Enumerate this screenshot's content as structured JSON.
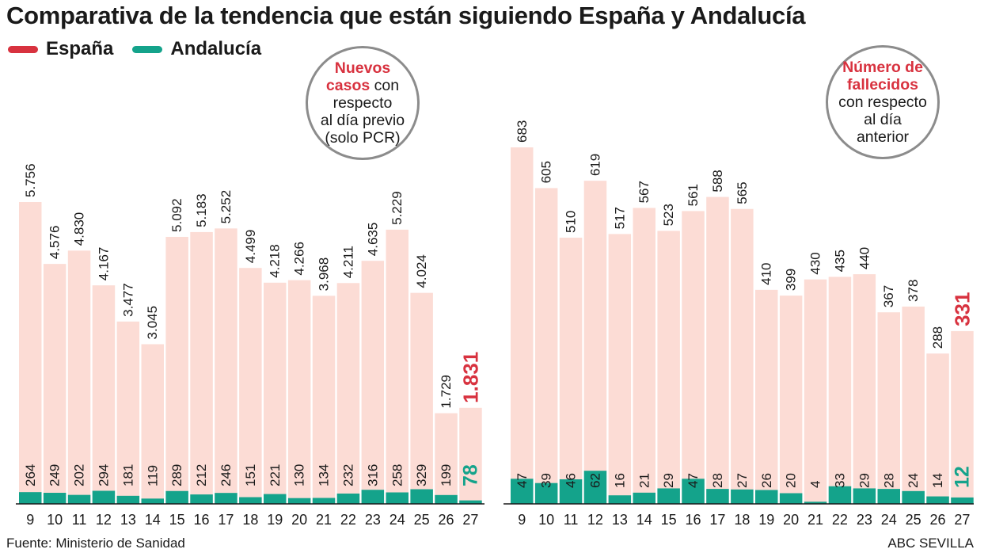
{
  "title": "Comparativa de la tendencia que están siguiendo España y Andalucía",
  "legend": {
    "espana": {
      "label": "España",
      "color": "#d8323f"
    },
    "andalucia": {
      "label": "Andalucía",
      "color": "#14a38b"
    }
  },
  "colors": {
    "espana_bar": "#fcdcd5",
    "andalucia_bar": "#14a38b",
    "axis": "#1a1a1a",
    "highlight_red": "#d8323f",
    "highlight_teal": "#14a38b"
  },
  "bubbles": {
    "left": {
      "bold": "Nuevos casos",
      "rest_line1": "con",
      "lines": [
        "respecto",
        "al día previo",
        "(solo PCR)"
      ]
    },
    "right": {
      "bold_lines": [
        "Número de",
        "fallecidos"
      ],
      "lines": [
        "con respecto",
        "al día",
        "anterior"
      ]
    }
  },
  "chart_data": [
    {
      "type": "bar",
      "title": "Nuevos casos con respecto al día previo (solo PCR)",
      "categories": [
        "9",
        "10",
        "11",
        "12",
        "13",
        "14",
        "15",
        "16",
        "17",
        "18",
        "19",
        "20",
        "21",
        "22",
        "23",
        "24",
        "25",
        "26",
        "27"
      ],
      "series": [
        {
          "name": "España",
          "values": [
            5756,
            4576,
            4830,
            4167,
            3477,
            3045,
            5092,
            5183,
            5252,
            4499,
            4218,
            4266,
            3968,
            4211,
            4635,
            5229,
            4024,
            1729,
            1831
          ],
          "labels": [
            "5.756",
            "4.576",
            "4.830",
            "4.167",
            "3.477",
            "3.045",
            "5.092",
            "5.183",
            "5.252",
            "4.499",
            "4.218",
            "4.266",
            "3.968",
            "4.211",
            "4.635",
            "5.229",
            "4.024",
            "1.729",
            "1.831"
          ]
        },
        {
          "name": "Andalucía",
          "values": [
            264,
            249,
            202,
            294,
            181,
            119,
            289,
            212,
            246,
            151,
            221,
            130,
            134,
            232,
            316,
            258,
            329,
            199,
            78
          ],
          "labels": [
            "264",
            "249",
            "202",
            "294",
            "181",
            "119",
            "289",
            "212",
            "246",
            "151",
            "221",
            "130",
            "134",
            "232",
            "316",
            "258",
            "329",
            "199",
            "78"
          ]
        }
      ],
      "ylim": [
        0,
        5756
      ],
      "highlight_last": true
    },
    {
      "type": "bar",
      "title": "Número de fallecidos con respecto al día anterior",
      "categories": [
        "9",
        "10",
        "11",
        "12",
        "13",
        "14",
        "15",
        "16",
        "17",
        "18",
        "19",
        "20",
        "21",
        "22",
        "23",
        "24",
        "25",
        "26",
        "27"
      ],
      "series": [
        {
          "name": "España",
          "values": [
            683,
            605,
            510,
            619,
            517,
            567,
            523,
            561,
            588,
            565,
            410,
            399,
            430,
            435,
            440,
            367,
            378,
            288,
            331
          ],
          "labels": [
            "683",
            "605",
            "510",
            "619",
            "517",
            "567",
            "523",
            "561",
            "588",
            "565",
            "410",
            "399",
            "430",
            "435",
            "440",
            "367",
            "378",
            "288",
            "331"
          ]
        },
        {
          "name": "Andalucía",
          "values": [
            47,
            39,
            46,
            62,
            16,
            21,
            29,
            47,
            28,
            27,
            26,
            20,
            4,
            33,
            29,
            28,
            24,
            14,
            12
          ],
          "labels": [
            "47",
            "39",
            "46",
            "62",
            "16",
            "21",
            "29",
            "47",
            "28",
            "27",
            "26",
            "20",
            "4",
            "33",
            "29",
            "28",
            "24",
            "14",
            "12"
          ]
        }
      ],
      "ylim": [
        0,
        683
      ],
      "highlight_last": true
    }
  ],
  "footer": {
    "source": "Fuente: Ministerio de Sanidad",
    "credit": "ABC SEVILLA"
  }
}
